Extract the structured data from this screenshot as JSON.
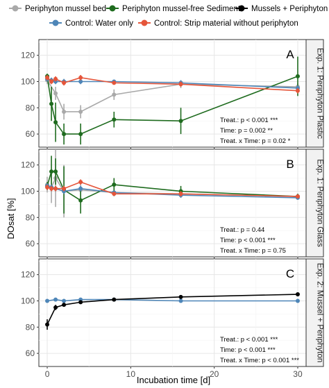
{
  "legend": [
    {
      "name": "Periphyton mussel bed",
      "color": "#a9a9a9"
    },
    {
      "name": "Periphyton mussel-free Sediment",
      "color": "#1e6b1e"
    },
    {
      "name": "Mussels + Periphyton",
      "color": "#000000"
    },
    {
      "name": "Control: Water only",
      "color": "#4e86b8"
    },
    {
      "name": "Control: Strip material without periphyton",
      "color": "#e5553a"
    }
  ],
  "chart_data": {
    "type": "line",
    "xlabel": "Incubation time [d]",
    "ylabel": "DOsat [%]",
    "xlim": [
      -1,
      31
    ],
    "x_ticks": [
      0,
      10,
      20,
      30
    ],
    "y_ticks": [
      60,
      80,
      100,
      120
    ],
    "panels": [
      {
        "letter": "A",
        "strip": "Exp. 1: Periphyton Plastic",
        "ylim": [
          50,
          132
        ],
        "stats": [
          "Treat.: p < 0.001 ***",
          "Time: p = 0.002 **",
          "Treat. x Time: p = 0.02 *"
        ],
        "series": [
          {
            "name": "Periphyton mussel bed",
            "color": "#a9a9a9",
            "x": [
              0,
              1,
              2,
              4,
              8,
              16,
              30
            ],
            "y": [
              101,
              91,
              77,
              77,
              90,
              98,
              96
            ],
            "err": [
              3,
              5,
              6,
              5,
              4,
              3,
              3
            ]
          },
          {
            "name": "Periphyton mussel-free Sediment",
            "color": "#1e6b1e",
            "x": [
              0,
              0.5,
              1,
              2,
              4,
              8,
              16,
              30
            ],
            "y": [
              104,
              83,
              69,
              60,
              60,
              71,
              70,
              104
            ],
            "err": [
              2,
              13,
              15,
              8,
              8,
              6,
              10,
              15
            ]
          },
          {
            "name": "Control: Water only",
            "color": "#4e86b8",
            "x": [
              0,
              0.5,
              1,
              2,
              4,
              8,
              16,
              30
            ],
            "y": [
              102,
              101,
              100,
              100,
              100,
              100,
              99,
              95
            ],
            "err": [
              2,
              2,
              2,
              2,
              2,
              1,
              2,
              2
            ]
          },
          {
            "name": "Control: Strip material without periphyton",
            "color": "#e5553a",
            "x": [
              0,
              0.5,
              1,
              2,
              4,
              8,
              16,
              30
            ],
            "y": [
              103,
              100,
              102,
              99,
              103,
              99,
              98,
              93
            ],
            "err": [
              2,
              2,
              2,
              2,
              2,
              1,
              2,
              2
            ]
          }
        ]
      },
      {
        "letter": "B",
        "strip": "Exp. 1: Periphyton Glass",
        "ylim": [
          50,
          132
        ],
        "stats": [
          "Treat.: p = 0.44",
          "Time: p < 0.001 ***",
          "Treat. x Time: p = 0.75"
        ],
        "series": [
          {
            "name": "Periphyton mussel bed",
            "color": "#a9a9a9",
            "x": [
              0,
              0.5,
              1,
              2,
              4,
              8,
              16,
              30
            ],
            "y": [
              105,
              103,
              110,
              100,
              101,
              99,
              98,
              96
            ],
            "err": [
              6,
              12,
              22,
              20,
              8,
              3,
              3,
              2
            ]
          },
          {
            "name": "Periphyton mussel-free Sediment",
            "color": "#1e6b1e",
            "x": [
              0,
              0.5,
              1,
              2,
              4,
              8,
              16,
              30
            ],
            "y": [
              104,
              115,
              115,
              101,
              93,
              105,
              100,
              96
            ],
            "err": [
              3,
              12,
              10,
              18,
              10,
              5,
              4,
              2
            ]
          },
          {
            "name": "Control: Water only",
            "color": "#4e86b8",
            "x": [
              0,
              0.5,
              1,
              2,
              4,
              8,
              16,
              30
            ],
            "y": [
              104,
              103,
              102,
              100,
              102,
              99,
              97,
              95
            ],
            "err": [
              2,
              2,
              2,
              2,
              2,
              1,
              2,
              1
            ]
          },
          {
            "name": "Control: Strip material without periphyton",
            "color": "#e5553a",
            "x": [
              0,
              0.5,
              1,
              2,
              4,
              8,
              16,
              30
            ],
            "y": [
              103,
              102,
              102,
              102,
              107,
              98,
              98,
              96
            ],
            "err": [
              2,
              2,
              2,
              2,
              2,
              1,
              2,
              1
            ]
          }
        ]
      },
      {
        "letter": "C",
        "strip": "Exp. 2: Mussel + Periphyton",
        "ylim": [
          50,
          132
        ],
        "stats": [
          "Treat.: p < 0.001 ***",
          "Time: p < 0.001 ***",
          "Treat. x Time: p < 0.001 ***"
        ],
        "series": [
          {
            "name": "Control: Water only",
            "color": "#4e86b8",
            "x": [
              0,
              1,
              2,
              4,
              8,
              16,
              30
            ],
            "y": [
              100,
              101,
              100,
              101,
              101,
              100,
              100
            ],
            "err": [
              1,
              1,
              1,
              1,
              1,
              1,
              1
            ]
          },
          {
            "name": "Mussels + Periphyton",
            "color": "#000000",
            "x": [
              0,
              1,
              2,
              4,
              8,
              16,
              30
            ],
            "y": [
              82,
              95,
              97,
              99,
              101,
              103,
              105
            ],
            "err": [
              4,
              2,
              1,
              1,
              1,
              1,
              1
            ]
          }
        ]
      }
    ]
  }
}
